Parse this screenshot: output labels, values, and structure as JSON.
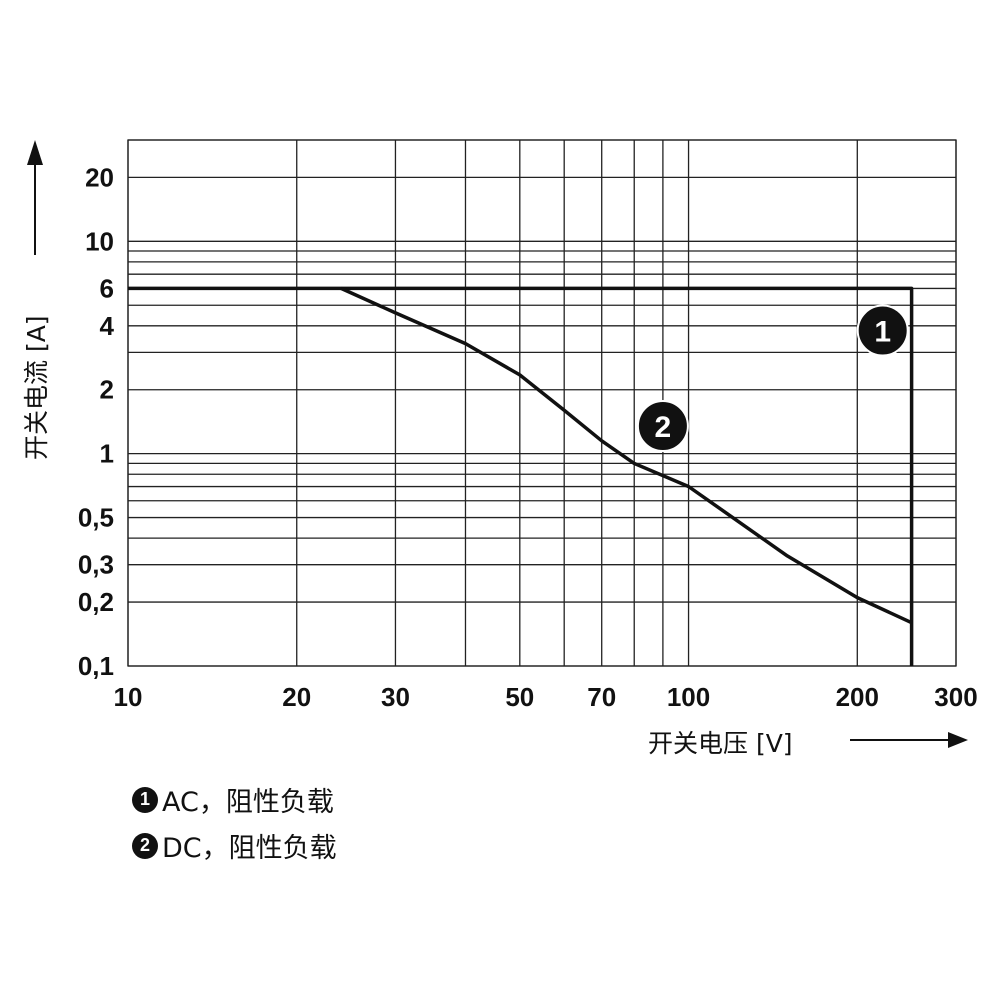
{
  "chart_data": {
    "type": "line",
    "x_scale": "log",
    "y_scale": "log",
    "xlim": [
      10,
      300
    ],
    "ylim": [
      0.1,
      30
    ],
    "xlabel": "开关电压 [V]",
    "ylabel": "开关电流 [A]",
    "x_tick_labels": [
      {
        "value": 10,
        "label": "10"
      },
      {
        "value": 20,
        "label": "20"
      },
      {
        "value": 30,
        "label": "30"
      },
      {
        "value": 50,
        "label": "50"
      },
      {
        "value": 70,
        "label": "70"
      },
      {
        "value": 100,
        "label": "100"
      },
      {
        "value": 200,
        "label": "200"
      },
      {
        "value": 300,
        "label": "300"
      }
    ],
    "y_tick_labels": [
      {
        "value": 0.1,
        "label": "0,1"
      },
      {
        "value": 0.2,
        "label": "0,2"
      },
      {
        "value": 0.3,
        "label": "0,3"
      },
      {
        "value": 0.5,
        "label": "0,5"
      },
      {
        "value": 1,
        "label": "1"
      },
      {
        "value": 2,
        "label": "2"
      },
      {
        "value": 4,
        "label": "4"
      },
      {
        "value": 6,
        "label": "6"
      },
      {
        "value": 10,
        "label": "10"
      },
      {
        "value": 20,
        "label": "20"
      }
    ],
    "x_gridlines": [
      10,
      20,
      30,
      40,
      50,
      60,
      70,
      80,
      90,
      100,
      200,
      300
    ],
    "y_gridlines": [
      0.1,
      0.2,
      0.3,
      0.4,
      0.5,
      0.6,
      0.7,
      0.8,
      0.9,
      1,
      2,
      3,
      4,
      5,
      6,
      7,
      8,
      9,
      10,
      20,
      30
    ],
    "series": [
      {
        "name": "AC, 阻性负载",
        "marker": "1",
        "label_at": {
          "x": 222,
          "y": 3.8
        },
        "points": [
          [
            10,
            6
          ],
          [
            250,
            6
          ],
          [
            250,
            0.1
          ]
        ]
      },
      {
        "name": "DC, 阻性负载",
        "marker": "2",
        "label_at": {
          "x": 90,
          "y": 1.35
        },
        "points": [
          [
            24,
            6
          ],
          [
            30,
            4.6
          ],
          [
            40,
            3.3
          ],
          [
            50,
            2.35
          ],
          [
            60,
            1.6
          ],
          [
            70,
            1.15
          ],
          [
            80,
            0.9
          ],
          [
            100,
            0.7
          ],
          [
            150,
            0.33
          ],
          [
            200,
            0.21
          ],
          [
            250,
            0.16
          ]
        ]
      }
    ]
  },
  "legend": {
    "items": [
      {
        "num": "1",
        "label": "AC，阻性负载"
      },
      {
        "num": "2",
        "label": "DC，阻性负载"
      }
    ]
  }
}
